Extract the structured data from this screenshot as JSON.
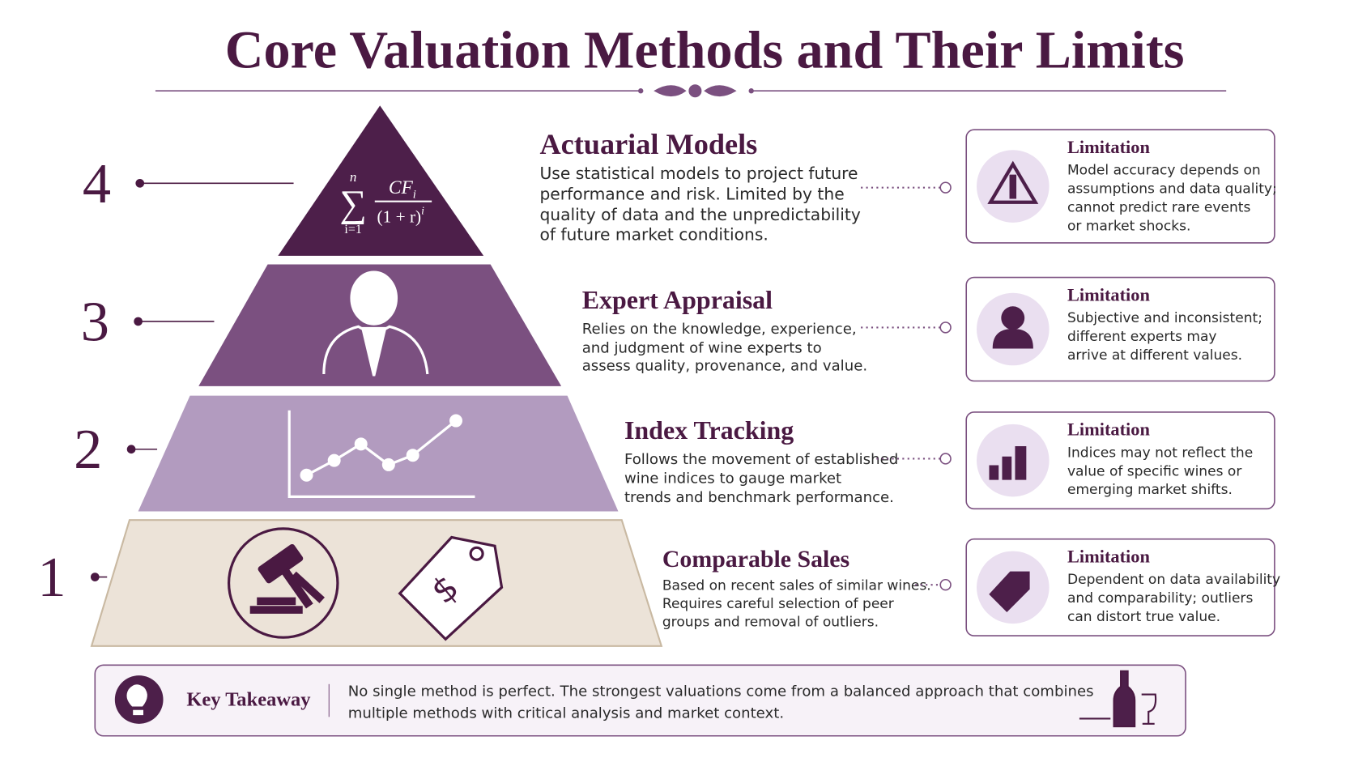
{
  "header": {
    "title": "Core Valuation Methods and Their Limits"
  },
  "formula": {
    "sum_top": "n",
    "sum_symbol": "∑",
    "sum_bottom": "i=1",
    "numerator": "CF",
    "numerator_sub": "i",
    "denominator": "(1 + r)",
    "denominator_sup": "i"
  },
  "price_tag_symbol": "$",
  "levels": [
    {
      "number": 4,
      "title": "Actuarial Models",
      "description": [
        "Use statistical models to project future",
        "performance and risk. Limited by the",
        "quality of data and the unpredictability",
        "of future market conditions."
      ],
      "limitation_label": "Limitation",
      "limitation": [
        "Model accuracy depends on",
        "assumptions and data quality;",
        "cannot predict rare events",
        "or market shocks."
      ]
    },
    {
      "number": 3,
      "title": "Expert Appraisal",
      "description": [
        "Relies on the knowledge, experience,",
        "and judgment of wine experts to",
        "assess quality, provenance, and value."
      ],
      "limitation_label": "Limitation",
      "limitation": [
        "Subjective and inconsistent;",
        "different experts may",
        "arrive at different values."
      ]
    },
    {
      "number": 2,
      "title": "Index Tracking",
      "description": [
        "Follows the movement of established",
        "wine indices to gauge market",
        "trends and benchmark performance."
      ],
      "limitation_label": "Limitation",
      "limitation": [
        "Indices may not reflect the",
        "value of specific wines or",
        "emerging market shifts."
      ]
    },
    {
      "number": 1,
      "title": "Comparable Sales",
      "description": [
        "Based on recent sales of similar wines.",
        "Requires careful selection of peer",
        "groups and removal of outliers."
      ],
      "limitation_label": "Limitation",
      "limitation": [
        "Dependent on data availability",
        "and comparability; outliers",
        "can distort true value."
      ]
    }
  ],
  "takeaway": {
    "label": "Key Takeaway",
    "text": [
      "No single method is perfect. The strongest valuations come from a balanced approach that combines",
      "multiple methods with critical analysis and market context."
    ]
  }
}
